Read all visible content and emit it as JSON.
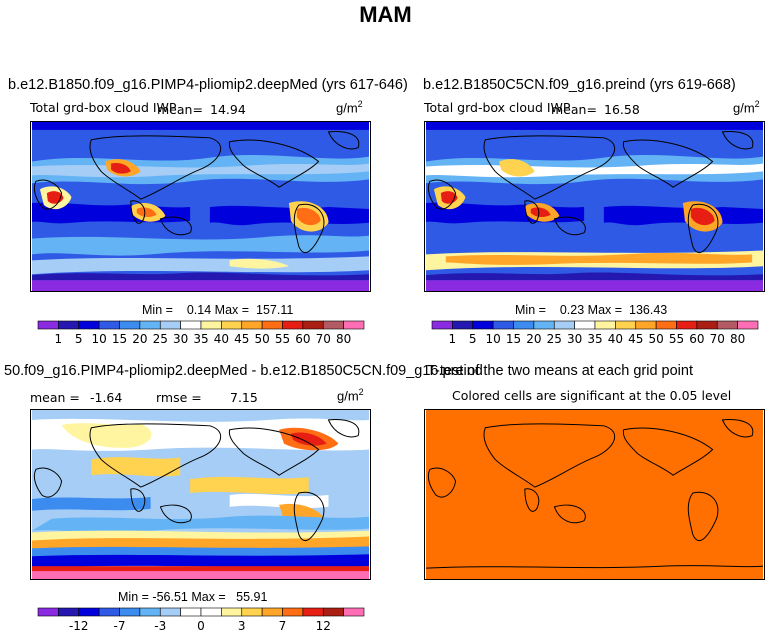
{
  "page_title": "MAM",
  "colors": {
    "levels_palette": [
      "#8a2be2",
      "#2418b0",
      "#0000dd",
      "#2e5ae6",
      "#3c8cf0",
      "#64b4f5",
      "#a5cdf5",
      "#ffffff",
      "#fff5a0",
      "#ffd250",
      "#ffa528",
      "#ff6e14",
      "#e61e14",
      "#aa1e14",
      "#b45a64",
      "#ff6eb4"
    ],
    "diff_palette": [
      "#8a2be2",
      "#2418b0",
      "#0000dd",
      "#2e5ae6",
      "#3c8cf0",
      "#64b4f5",
      "#a5cdf5",
      "#ffffff",
      "#ffffff",
      "#fff5a0",
      "#ffd250",
      "#ffa528",
      "#ff6e14",
      "#e61e14",
      "#aa1e14",
      "#ff6eb4"
    ],
    "ttest_fill": "#ff7000"
  },
  "panels": {
    "top_left": {
      "title": "b.e12.B1850.f09_g16.PIMP4-pliomip2.deepMed (yrs 617-646)",
      "variable_label": "Total grd-box cloud IWP",
      "mean_label": "mean=",
      "mean_value": "14.94",
      "units_base": "g/m",
      "units_exp": "2",
      "min_label": "Min =",
      "min_value": "0.14",
      "max_label": "Max =",
      "max_value": "157.11"
    },
    "top_right": {
      "title": "b.e12.B1850C5CN.f09_g16.preind (yrs 619-668)",
      "variable_label": "Total grd-box cloud IWP",
      "mean_label": "mean=",
      "mean_value": "16.58",
      "units_base": "g/m",
      "units_exp": "2",
      "min_label": "Min =",
      "min_value": "0.23",
      "max_label": "Max =",
      "max_value": "136.43"
    },
    "bottom_left": {
      "title": "50.f09_g16.PIMP4-pliomip2.deepMed - b.e12.B1850C5CN.f09_g16.preind",
      "mean_label": "mean =",
      "mean_value": "-1.64",
      "rmse_label": "rmse =",
      "rmse_value": "7.15",
      "units_base": "g/m",
      "units_exp": "2",
      "min_label": "Min =",
      "min_value": "-56.51",
      "max_label": "Max =",
      "max_value": "55.91"
    },
    "bottom_right": {
      "title": "T-test of the two means at each grid point",
      "subtitle": "Colored cells are significant at the 0.05 level"
    }
  },
  "chart_data": [
    {
      "type": "heatmap",
      "panel": "top_left",
      "colorbar_levels": [
        "1",
        "5",
        "10",
        "15",
        "20",
        "25",
        "30",
        "35",
        "40",
        "45",
        "50",
        "55",
        "60",
        "70",
        "80"
      ],
      "stats": {
        "mean": 14.94,
        "min": 0.14,
        "max": 157.11
      }
    },
    {
      "type": "heatmap",
      "panel": "top_right",
      "colorbar_levels": [
        "1",
        "5",
        "10",
        "15",
        "20",
        "25",
        "30",
        "35",
        "40",
        "45",
        "50",
        "55",
        "60",
        "70",
        "80"
      ],
      "stats": {
        "mean": 16.58,
        "min": 0.23,
        "max": 136.43
      }
    },
    {
      "type": "heatmap",
      "panel": "bottom_left",
      "colorbar_labels": [
        "-12",
        "-7",
        "-3",
        "0",
        "3",
        "7",
        "12"
      ],
      "stats": {
        "mean": -1.64,
        "rmse": 7.15,
        "min": -56.51,
        "max": 55.91
      }
    },
    {
      "type": "heatmap",
      "panel": "bottom_right",
      "significant_everywhere": true
    }
  ]
}
